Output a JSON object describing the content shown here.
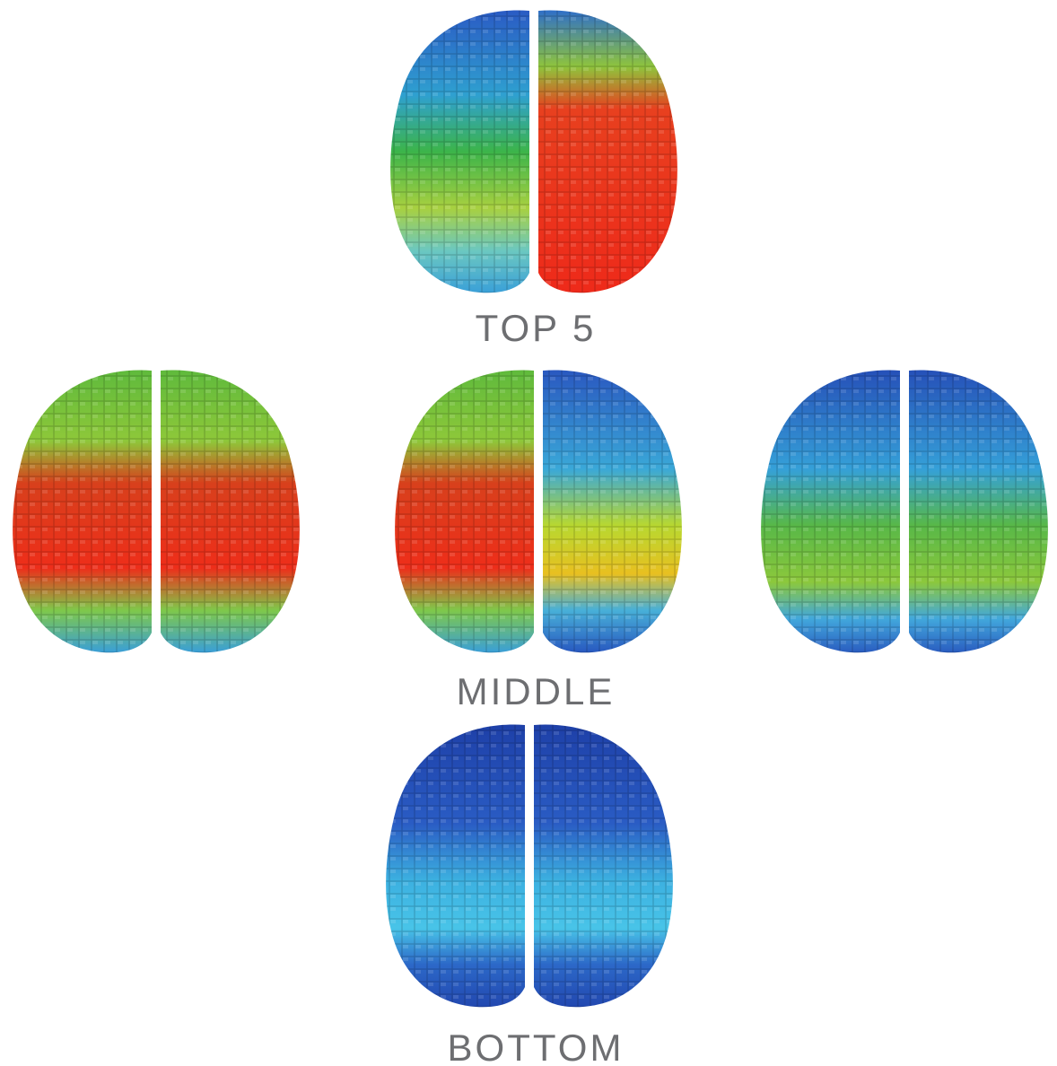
{
  "labels": {
    "top": "TOP 5",
    "middle": "MIDDLE",
    "bottom": "BOTTOM"
  }
}
